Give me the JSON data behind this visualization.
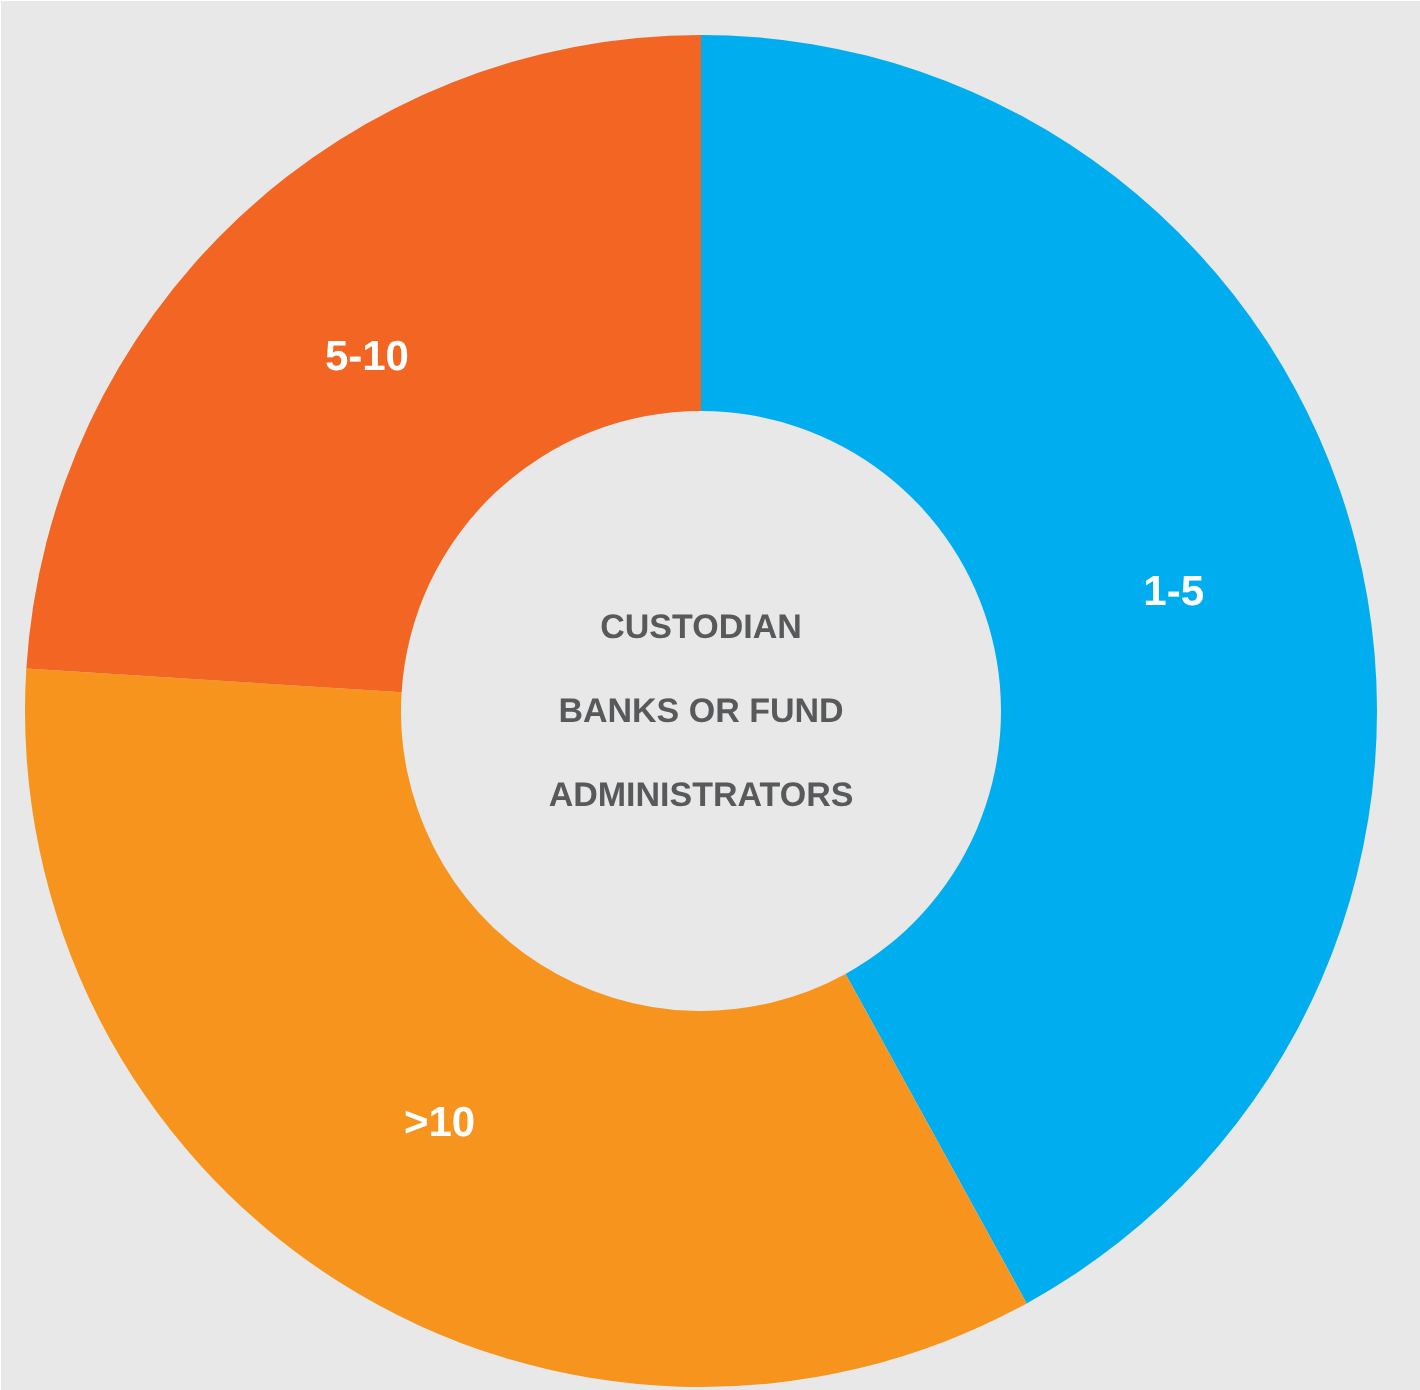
{
  "chart_data": {
    "type": "donut",
    "title": "CUSTODIAN BANKS OR FUND ADMINISTRATORS",
    "categories": [
      "1-5",
      ">10",
      "5-10"
    ],
    "values": [
      42,
      34,
      24
    ],
    "colors": [
      "#00aeef",
      "#f7941d",
      "#f26522"
    ]
  }
}
